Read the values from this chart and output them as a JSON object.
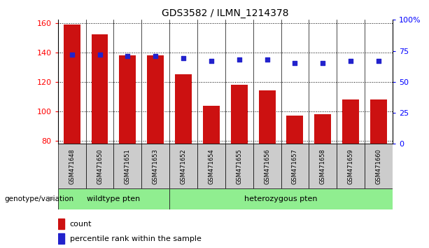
{
  "title": "GDS3582 / ILMN_1214378",
  "samples": [
    "GSM471648",
    "GSM471650",
    "GSM471651",
    "GSM471653",
    "GSM471652",
    "GSM471654",
    "GSM471655",
    "GSM471656",
    "GSM471657",
    "GSM471658",
    "GSM471659",
    "GSM471660"
  ],
  "bar_values": [
    159,
    152,
    138,
    138,
    125,
    104,
    118,
    114,
    97,
    98,
    108,
    108
  ],
  "percentile_values": [
    72,
    72,
    71,
    71,
    69,
    67,
    68,
    68,
    65,
    65,
    67,
    67
  ],
  "bar_color": "#cc1111",
  "percentile_color": "#2222cc",
  "ylim_left": [
    78,
    162
  ],
  "ylim_right": [
    0,
    100
  ],
  "yticks_left": [
    80,
    100,
    120,
    140,
    160
  ],
  "yticks_right": [
    0,
    25,
    50,
    75,
    100
  ],
  "ytick_labels_right": [
    "0",
    "25",
    "50",
    "75",
    "100%"
  ],
  "wildtype_label": "wildtype pten",
  "heterozygous_label": "heterozygous pten",
  "genotype_label": "genotype/variation",
  "legend_count": "count",
  "legend_percentile": "percentile rank within the sample",
  "wildtype_count": 4,
  "bar_bottom": 78,
  "fig_width": 6.13,
  "fig_height": 3.54,
  "dpi": 100
}
